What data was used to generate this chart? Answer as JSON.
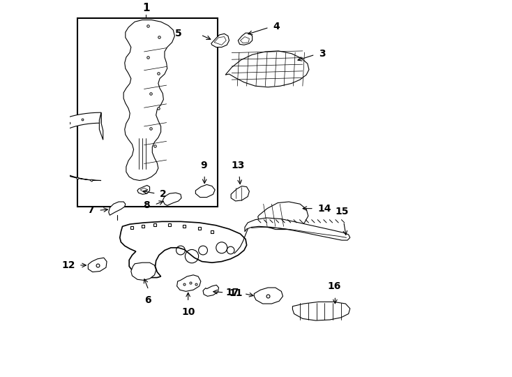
{
  "background_color": "#ffffff",
  "line_color": "#000000",
  "fig_width": 7.34,
  "fig_height": 5.4,
  "dpi": 100,
  "lw_thin": 0.8,
  "lw_med": 1.2,
  "label_fontsize": 10,
  "label_fontsize_1": 11
}
